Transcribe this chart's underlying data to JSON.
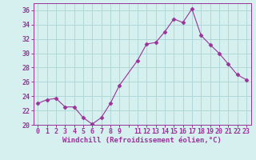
{
  "x": [
    0,
    1,
    2,
    3,
    4,
    5,
    6,
    7,
    8,
    9,
    11,
    12,
    13,
    14,
    15,
    16,
    17,
    18,
    19,
    20,
    21,
    22,
    23
  ],
  "y": [
    23.0,
    23.5,
    23.7,
    22.5,
    22.5,
    21.0,
    20.1,
    21.0,
    23.0,
    25.5,
    29.0,
    31.3,
    31.5,
    33.0,
    34.8,
    34.3,
    36.2,
    32.5,
    31.2,
    30.0,
    28.5,
    27.0,
    26.3
  ],
  "line_color": "#993399",
  "marker": "D",
  "markersize": 2.5,
  "bg_color": "#d6f0f0",
  "grid_color": "#b0d8d8",
  "xlabel": "Windchill (Refroidissement éolien,°C)",
  "ylabel": "",
  "ylim": [
    20,
    37
  ],
  "yticks": [
    20,
    22,
    24,
    26,
    28,
    30,
    32,
    34,
    36
  ],
  "xlabel_color": "#993399",
  "tick_color": "#993399",
  "label_fontsize": 6.5,
  "tick_fontsize": 6.0
}
